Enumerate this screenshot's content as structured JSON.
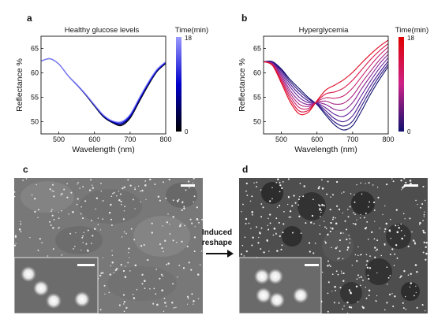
{
  "panels": {
    "a": "a",
    "b": "b",
    "c": "c",
    "d": "d"
  },
  "chart_data": [
    {
      "type": "line",
      "panel": "a",
      "title": "Healthy glucose levels",
      "xlabel": "Wavelength (nm)",
      "ylabel": "Reflectance %",
      "xlim": [
        450,
        800
      ],
      "ylim": [
        47.5,
        67.5
      ],
      "x_ticks": [
        500,
        600,
        700,
        800
      ],
      "y_ticks": [
        50,
        55,
        60,
        65
      ],
      "colorbar": {
        "label": "Time(min)",
        "min": "0",
        "max": "18",
        "colors": [
          "#000000",
          "#0000cc",
          "#9a9aff"
        ]
      },
      "x": [
        450,
        475,
        500,
        525,
        550,
        575,
        600,
        625,
        650,
        675,
        700,
        725,
        750,
        775,
        800
      ],
      "series": [
        {
          "values": [
            62.4,
            62.9,
            61.8,
            59.5,
            57.6,
            55.5,
            53.2,
            51.0,
            49.8,
            49.2,
            50.7,
            54.0,
            57.3,
            60.2,
            61.9
          ]
        },
        {
          "values": [
            62.4,
            62.9,
            61.8,
            59.5,
            57.6,
            55.6,
            53.3,
            51.1,
            49.9,
            49.4,
            50.9,
            54.2,
            57.5,
            60.3,
            62.0
          ]
        },
        {
          "values": [
            62.4,
            62.9,
            61.8,
            59.5,
            57.6,
            55.6,
            53.4,
            51.2,
            50.0,
            49.6,
            51.1,
            54.4,
            57.6,
            60.4,
            62.1
          ]
        },
        {
          "values": [
            62.4,
            62.9,
            61.8,
            59.5,
            57.6,
            55.6,
            53.4,
            51.3,
            50.1,
            49.8,
            51.3,
            54.6,
            57.8,
            60.5,
            62.2
          ]
        },
        {
          "values": [
            62.4,
            62.9,
            61.8,
            59.5,
            57.7,
            55.7,
            53.5,
            51.4,
            50.2,
            50.0,
            51.5,
            54.8,
            58.0,
            60.7,
            62.3
          ]
        }
      ],
      "series_colors": [
        "#000000",
        "#000055",
        "#0000aa",
        "#2020ee",
        "#8a8aff"
      ]
    },
    {
      "type": "line",
      "panel": "b",
      "title": "Hyperglycemia",
      "xlabel": "Wavelength (nm)",
      "ylabel": "Reflectance %",
      "xlim": [
        450,
        800
      ],
      "ylim": [
        47.5,
        67.5
      ],
      "x_ticks": [
        500,
        600,
        700,
        800
      ],
      "y_ticks": [
        50,
        55,
        60,
        65
      ],
      "colorbar": {
        "label": "Time(min)",
        "min": "0",
        "max": "18",
        "colors": [
          "#10106e",
          "#cc2288",
          "#e00000"
        ]
      },
      "x": [
        450,
        475,
        500,
        525,
        550,
        575,
        600,
        625,
        650,
        675,
        700,
        725,
        750,
        775,
        800
      ],
      "series": [
        {
          "values": [
            62.3,
            62.3,
            60.8,
            58.6,
            56.8,
            55.0,
            53.5,
            51.3,
            49.3,
            48.3,
            49.2,
            52.2,
            55.6,
            58.6,
            61.3
          ]
        },
        {
          "values": [
            62.3,
            62.2,
            60.6,
            58.2,
            56.3,
            54.7,
            53.6,
            51.7,
            49.9,
            49.1,
            50.1,
            53.2,
            56.4,
            59.3,
            61.8
          ]
        },
        {
          "values": [
            62.3,
            62.1,
            60.3,
            57.7,
            55.7,
            54.3,
            53.7,
            52.2,
            50.6,
            50.0,
            51.2,
            54.2,
            57.3,
            60.0,
            62.4
          ]
        },
        {
          "values": [
            62.3,
            62.0,
            59.9,
            57.1,
            55.0,
            53.9,
            53.8,
            52.8,
            51.5,
            51.1,
            52.5,
            55.4,
            58.3,
            60.9,
            63.1
          ]
        },
        {
          "values": [
            62.3,
            61.9,
            59.5,
            56.4,
            54.3,
            53.5,
            53.9,
            53.5,
            52.5,
            52.4,
            53.9,
            56.7,
            59.3,
            61.8,
            63.8
          ]
        },
        {
          "values": [
            62.3,
            61.8,
            59.1,
            55.8,
            53.6,
            53.1,
            54.0,
            54.2,
            53.6,
            53.8,
            55.3,
            57.9,
            60.3,
            62.6,
            64.5
          ]
        },
        {
          "values": [
            62.3,
            61.7,
            58.7,
            55.2,
            52.9,
            52.7,
            54.1,
            54.9,
            54.8,
            55.3,
            56.9,
            59.2,
            61.5,
            63.6,
            65.3
          ]
        },
        {
          "values": [
            62.3,
            61.6,
            58.3,
            54.6,
            52.2,
            52.3,
            54.2,
            55.7,
            56.1,
            56.9,
            58.5,
            60.6,
            62.7,
            64.5,
            66.0
          ]
        },
        {
          "values": [
            62.3,
            61.5,
            57.9,
            54.0,
            51.6,
            51.9,
            54.3,
            56.5,
            57.5,
            58.6,
            60.1,
            62.0,
            63.8,
            65.4,
            66.7
          ]
        }
      ],
      "series_colors": [
        "#10106e",
        "#2a1480",
        "#461890",
        "#64209a",
        "#8a2496",
        "#ac2886",
        "#c62470",
        "#d81848",
        "#e00a20"
      ]
    }
  ],
  "arrow_text": [
    "Induced",
    "reshape"
  ],
  "micrographs": {
    "c": {
      "background": "#787878",
      "bead_color": "#e8e8e8"
    },
    "d": {
      "background": "#4e4e4e",
      "bead_color": "#f0f0f0"
    }
  }
}
